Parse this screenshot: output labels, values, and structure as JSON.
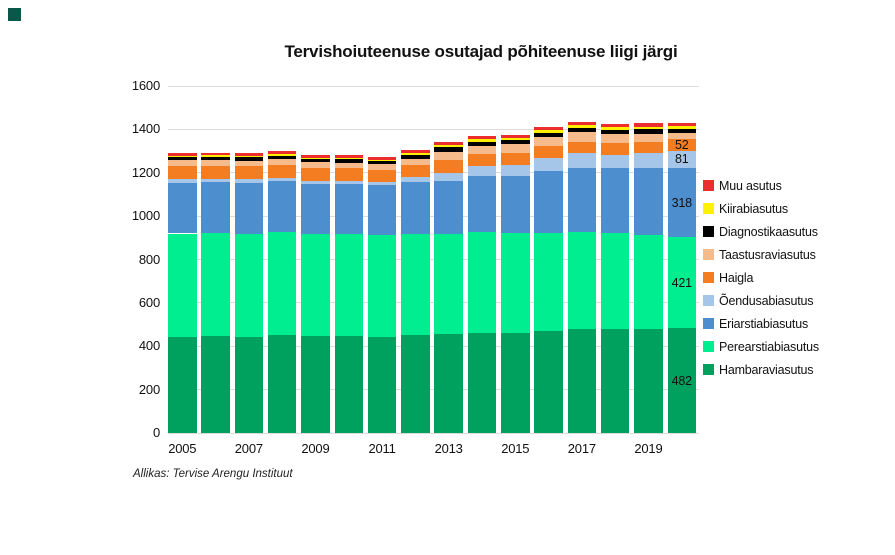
{
  "page": {
    "background": "#ffffff"
  },
  "corner_marker": {
    "color": "#0b5749"
  },
  "source_note": "Allikas: Tervise Arengu Instituut",
  "chart_data": {
    "type": "bar",
    "stacked": true,
    "title": "Tervishoiuteenuse osutajad põhiteenuse liigi järgi",
    "categories": [
      "2005",
      "2006",
      "2007",
      "2008",
      "2009",
      "2010",
      "2011",
      "2012",
      "2013",
      "2014",
      "2015",
      "2016",
      "2017",
      "2018",
      "2019",
      "2020"
    ],
    "x_axis_tick_labels": [
      "2005",
      "2007",
      "2009",
      "2011",
      "2013",
      "2015",
      "2017",
      "2019"
    ],
    "y_axis_tick_labels": [
      "0",
      "200",
      "400",
      "600",
      "800",
      "1000",
      "1200",
      "1400",
      "1600"
    ],
    "ylim": [
      0,
      1600
    ],
    "ytick_step": 200,
    "grid": true,
    "legend_position": "right",
    "series": [
      {
        "name": "Hambaraviasutus",
        "color": "#00a05e",
        "values": [
          444,
          447,
          441,
          452,
          448,
          446,
          443,
          450,
          458,
          461,
          462,
          471,
          481,
          480,
          481,
          482
        ]
      },
      {
        "name": "Perearstiabiasutus",
        "color": "#00ee8f",
        "values": [
          476,
          476,
          477,
          473,
          471,
          471,
          469,
          466,
          458,
          464,
          460,
          453,
          447,
          440,
          434,
          421
        ]
      },
      {
        "name": "Eriarstiabiasutus",
        "color": "#4d8fce",
        "values": [
          234,
          235,
          237,
          236,
          230,
          232,
          231,
          240,
          245,
          258,
          265,
          283,
          295,
          300,
          308,
          318
        ]
      },
      {
        "name": "Õendusabiasutus",
        "color": "#a5c6e8",
        "values": [
          15,
          15,
          15,
          16,
          15,
          15,
          15,
          24,
          38,
          46,
          50,
          60,
          66,
          64,
          66,
          81
        ]
      },
      {
        "name": "Haigla",
        "color": "#f47d21",
        "values": [
          61,
          59,
          59,
          58,
          58,
          57,
          56,
          56,
          60,
          57,
          56,
          56,
          55,
          54,
          53,
          52
        ]
      },
      {
        "name": "Taastusraviasutus",
        "color": "#f6ba8b",
        "values": [
          27,
          27,
          27,
          28,
          26,
          26,
          25,
          28,
          38,
          38,
          38,
          40,
          42,
          40,
          38,
          30
        ]
      },
      {
        "name": "Diagnostikaasutus",
        "color": "#000000",
        "values": [
          15,
          15,
          15,
          16,
          15,
          15,
          15,
          17,
          20,
          20,
          20,
          21,
          22,
          21,
          21,
          20
        ]
      },
      {
        "name": "Kiirabiasutus",
        "color": "#fff100",
        "values": [
          6,
          6,
          6,
          7,
          6,
          6,
          6,
          8,
          10,
          10,
          10,
          11,
          11,
          11,
          11,
          11
        ]
      },
      {
        "name": "Muu asutus",
        "color": "#eb2d2e",
        "values": [
          12,
          12,
          12,
          13,
          12,
          12,
          12,
          14,
          15,
          15,
          15,
          16,
          17,
          16,
          16,
          14
        ]
      }
    ],
    "data_labels": {
      "category": "2020",
      "series": [
        "Haigla",
        "Õendusabiasutus",
        "Eriarstiabiasutus",
        "Perearstiabiasutus",
        "Hambaraviasutus"
      ],
      "values": [
        52,
        81,
        318,
        421,
        482
      ]
    },
    "legend_order_top_to_bottom": [
      "Muu asutus",
      "Kiirabiasutus",
      "Diagnostikaasutus",
      "Taastusraviasutus",
      "Haigla",
      "Õendusabiasutus",
      "Eriarstiabiasutus",
      "Perearstiabiasutus",
      "Hambaraviasutus"
    ]
  }
}
